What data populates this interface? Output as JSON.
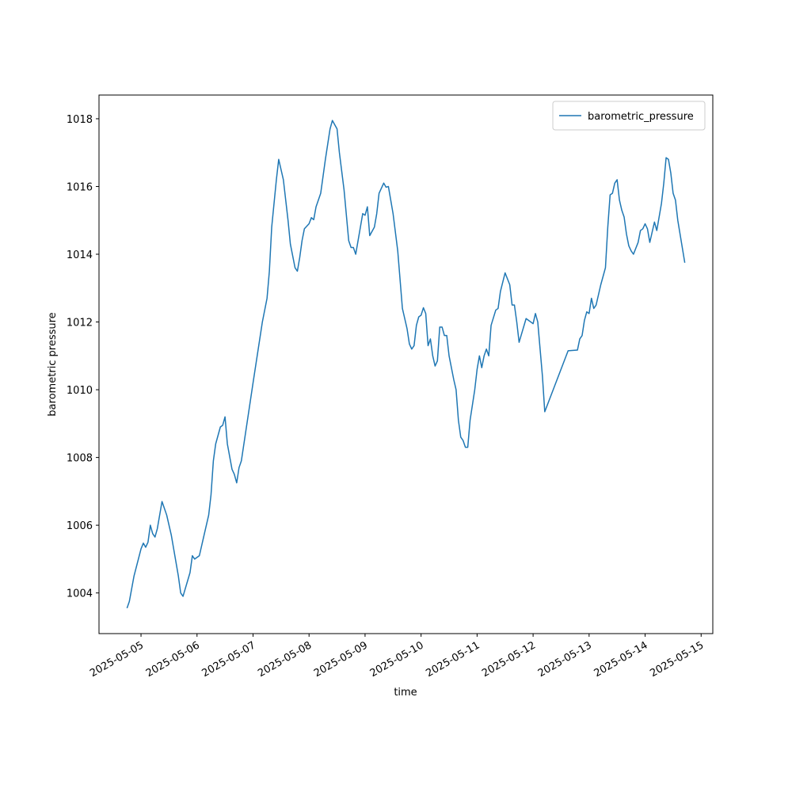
{
  "chart_data": {
    "type": "line",
    "xlabel": "time",
    "ylabel": "barometric pressure",
    "x": [
      "2025-05-04T18:00",
      "2025-05-04T19:00",
      "2025-05-04T21:00",
      "2025-05-05T00:00",
      "2025-05-05T01:00",
      "2025-05-05T02:00",
      "2025-05-05T03:00",
      "2025-05-05T04:00",
      "2025-05-05T05:00",
      "2025-05-05T06:00",
      "2025-05-05T07:00",
      "2025-05-05T09:00",
      "2025-05-05T11:00",
      "2025-05-05T13:00",
      "2025-05-05T14:00",
      "2025-05-05T16:00",
      "2025-05-05T17:00",
      "2025-05-05T18:00",
      "2025-05-05T21:00",
      "2025-05-05T22:00",
      "2025-05-05T23:00",
      "2025-05-06T01:00",
      "2025-05-06T03:00",
      "2025-05-06T05:00",
      "2025-05-06T06:00",
      "2025-05-06T07:00",
      "2025-05-06T08:00",
      "2025-05-06T10:00",
      "2025-05-06T11:00",
      "2025-05-06T12:00",
      "2025-05-06T13:00",
      "2025-05-06T15:00",
      "2025-05-06T16:00",
      "2025-05-06T17:00",
      "2025-05-06T18:00",
      "2025-05-06T19:00",
      "2025-05-07T00:00",
      "2025-05-07T04:00",
      "2025-05-07T06:00",
      "2025-05-07T07:00",
      "2025-05-07T08:00",
      "2025-05-07T10:00",
      "2025-05-07T11:00",
      "2025-05-07T13:00",
      "2025-05-07T15:00",
      "2025-05-07T16:00",
      "2025-05-07T18:00",
      "2025-05-07T19:00",
      "2025-05-07T20:00",
      "2025-05-07T21:00",
      "2025-05-07T22:00",
      "2025-05-08T00:00",
      "2025-05-08T01:00",
      "2025-05-08T02:00",
      "2025-05-08T03:00",
      "2025-05-08T05:00",
      "2025-05-08T07:00",
      "2025-05-08T09:00",
      "2025-05-08T10:00",
      "2025-05-08T12:00",
      "2025-05-08T13:00",
      "2025-05-08T15:00",
      "2025-05-08T17:00",
      "2025-05-08T18:00",
      "2025-05-08T19:00",
      "2025-05-08T20:00",
      "2025-05-08T21:00",
      "2025-05-08T23:00",
      "2025-05-09T00:00",
      "2025-05-09T01:00",
      "2025-05-09T02:00",
      "2025-05-09T04:00",
      "2025-05-09T05:00",
      "2025-05-09T06:00",
      "2025-05-09T08:00",
      "2025-05-09T09:00",
      "2025-05-09T10:00",
      "2025-05-09T12:00",
      "2025-05-09T14:00",
      "2025-05-09T16:00",
      "2025-05-09T18:00",
      "2025-05-09T19:00",
      "2025-05-09T20:00",
      "2025-05-09T21:00",
      "2025-05-09T22:00",
      "2025-05-09T23:00",
      "2025-05-10T00:00",
      "2025-05-10T01:00",
      "2025-05-10T02:00",
      "2025-05-10T03:00",
      "2025-05-10T04:00",
      "2025-05-10T05:00",
      "2025-05-10T06:00",
      "2025-05-10T07:00",
      "2025-05-10T08:00",
      "2025-05-10T09:00",
      "2025-05-10T10:00",
      "2025-05-10T11:00",
      "2025-05-10T12:00",
      "2025-05-10T14:00",
      "2025-05-10T15:00",
      "2025-05-10T16:00",
      "2025-05-10T17:00",
      "2025-05-10T18:00",
      "2025-05-10T19:00",
      "2025-05-10T20:00",
      "2025-05-10T21:00",
      "2025-05-10T23:00",
      "2025-05-11T00:00",
      "2025-05-11T01:00",
      "2025-05-11T02:00",
      "2025-05-11T03:00",
      "2025-05-11T04:00",
      "2025-05-11T05:00",
      "2025-05-11T06:00",
      "2025-05-11T08:00",
      "2025-05-11T09:00",
      "2025-05-11T10:00",
      "2025-05-11T12:00",
      "2025-05-11T14:00",
      "2025-05-11T15:00",
      "2025-05-11T16:00",
      "2025-05-11T17:00",
      "2025-05-11T18:00",
      "2025-05-11T21:00",
      "2025-05-11T22:00",
      "2025-05-12T00:00",
      "2025-05-12T01:00",
      "2025-05-12T02:00",
      "2025-05-12T03:00",
      "2025-05-12T04:00",
      "2025-05-12T05:00",
      "2025-05-12T15:00",
      "2025-05-12T19:00",
      "2025-05-12T20:00",
      "2025-05-12T21:00",
      "2025-05-12T22:00",
      "2025-05-12T23:00",
      "2025-05-13T00:00",
      "2025-05-13T01:00",
      "2025-05-13T02:00",
      "2025-05-13T03:00",
      "2025-05-13T05:00",
      "2025-05-13T07:00",
      "2025-05-13T08:00",
      "2025-05-13T09:00",
      "2025-05-13T10:00",
      "2025-05-13T11:00",
      "2025-05-13T12:00",
      "2025-05-13T13:00",
      "2025-05-13T14:00",
      "2025-05-13T15:00",
      "2025-05-13T16:00",
      "2025-05-13T17:00",
      "2025-05-13T18:00",
      "2025-05-13T19:00",
      "2025-05-13T21:00",
      "2025-05-13T22:00",
      "2025-05-13T23:00",
      "2025-05-14T00:00",
      "2025-05-14T01:00",
      "2025-05-14T02:00",
      "2025-05-14T04:00",
      "2025-05-14T05:00",
      "2025-05-14T07:00",
      "2025-05-14T08:00",
      "2025-05-14T09:00",
      "2025-05-14T10:00",
      "2025-05-14T11:00",
      "2025-05-14T12:00",
      "2025-05-14T13:00",
      "2025-05-14T14:00",
      "2025-05-14T17:00"
    ],
    "series": [
      {
        "name": "barometric_pressure",
        "color": "#1f77b4",
        "values": [
          1003.55,
          1003.75,
          1004.5,
          1005.3,
          1005.47,
          1005.35,
          1005.5,
          1006.0,
          1005.75,
          1005.65,
          1005.9,
          1006.7,
          1006.3,
          1005.7,
          1005.3,
          1004.5,
          1004.0,
          1003.9,
          1004.6,
          1005.1,
          1005.0,
          1005.1,
          1005.7,
          1006.3,
          1006.9,
          1007.9,
          1008.4,
          1008.9,
          1008.95,
          1009.2,
          1008.4,
          1007.65,
          1007.5,
          1007.25,
          1007.7,
          1007.9,
          1010.2,
          1012.0,
          1012.7,
          1013.5,
          1014.8,
          1016.2,
          1016.8,
          1016.2,
          1015.0,
          1014.3,
          1013.6,
          1013.5,
          1013.9,
          1014.4,
          1014.75,
          1014.9,
          1015.08,
          1015.02,
          1015.4,
          1015.8,
          1016.8,
          1017.7,
          1017.95,
          1017.7,
          1017.0,
          1015.9,
          1014.4,
          1014.2,
          1014.2,
          1014.0,
          1014.4,
          1015.2,
          1015.15,
          1015.4,
          1014.55,
          1014.8,
          1015.2,
          1015.8,
          1016.1,
          1015.98,
          1016.0,
          1015.2,
          1014.1,
          1012.4,
          1011.8,
          1011.35,
          1011.2,
          1011.3,
          1011.9,
          1012.15,
          1012.2,
          1012.42,
          1012.25,
          1011.3,
          1011.5,
          1011.0,
          1010.7,
          1010.85,
          1011.85,
          1011.85,
          1011.6,
          1011.6,
          1011.0,
          1010.3,
          1010.0,
          1009.1,
          1008.6,
          1008.5,
          1008.3,
          1008.3,
          1009.1,
          1010.0,
          1010.6,
          1011.0,
          1010.65,
          1011.0,
          1011.2,
          1011.0,
          1011.9,
          1012.35,
          1012.4,
          1012.9,
          1013.45,
          1013.1,
          1012.5,
          1012.5,
          1012.0,
          1011.4,
          1012.1,
          1012.05,
          1011.95,
          1012.25,
          1012.0,
          1011.2,
          1010.4,
          1009.35,
          1011.15,
          1011.17,
          1011.5,
          1011.6,
          1012.05,
          1012.3,
          1012.25,
          1012.7,
          1012.4,
          1012.5,
          1013.1,
          1013.6,
          1014.8,
          1015.75,
          1015.8,
          1016.1,
          1016.2,
          1015.6,
          1015.3,
          1015.1,
          1014.6,
          1014.25,
          1014.1,
          1014.0,
          1014.35,
          1014.7,
          1014.75,
          1014.9,
          1014.75,
          1014.35,
          1014.95,
          1014.7,
          1015.5,
          1016.1,
          1016.85,
          1016.8,
          1016.4,
          1015.8,
          1015.6,
          1015.0,
          1013.75
        ]
      }
    ],
    "xlim": [
      "2025-05-04T06:00",
      "2025-05-15T05:00"
    ],
    "xticks": [
      "2025-05-05",
      "2025-05-06",
      "2025-05-07",
      "2025-05-08",
      "2025-05-09",
      "2025-05-10",
      "2025-05-11",
      "2025-05-12",
      "2025-05-13",
      "2025-05-14",
      "2025-05-15"
    ],
    "ylim": [
      1002.8,
      1018.7
    ],
    "yticks": [
      1004,
      1006,
      1008,
      1010,
      1012,
      1014,
      1016,
      1018
    ],
    "legend": "upper right"
  }
}
